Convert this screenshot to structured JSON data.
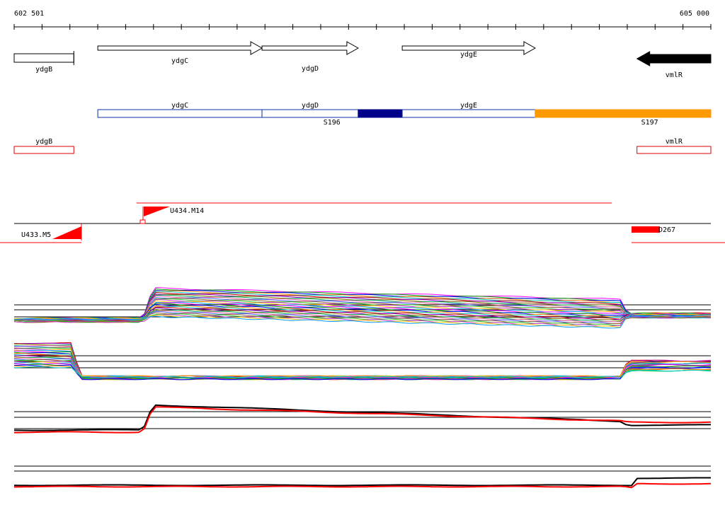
{
  "ruler": {
    "start_label": "602 501",
    "end_label": "605 000",
    "start_bp": 602501,
    "end_bp": 605000
  },
  "genes": [
    {
      "id": "ydgB",
      "label": "ydgB",
      "start": 602501,
      "end": 602715,
      "strand": "none",
      "filled": false
    },
    {
      "id": "ydgC",
      "label": "ydgC",
      "start": 602801,
      "end": 603390,
      "strand": "+",
      "filled": false
    },
    {
      "id": "ydgD",
      "label": "ydgD",
      "start": 603390,
      "end": 603735,
      "strand": "+",
      "filled": false
    },
    {
      "id": "ydgE",
      "label": "ydgE",
      "start": 603893,
      "end": 604370,
      "strand": "+",
      "filled": false
    },
    {
      "id": "vmlR",
      "label": "vmlR",
      "start": 604735,
      "end": 605000,
      "strand": "-",
      "filled": true
    }
  ],
  "operon_track": [
    {
      "label": "ydgC",
      "start": 602801,
      "end": 603390,
      "color": "#1030a0",
      "style": "outline"
    },
    {
      "label": "ydgD",
      "start": 603390,
      "end": 603735,
      "color": "#1030a0",
      "style": "outline"
    },
    {
      "label": "",
      "start": 603735,
      "end": 603893,
      "color": "#00008b",
      "style": "fill"
    },
    {
      "label": "ydgE",
      "start": 603893,
      "end": 604370,
      "color": "#1030a0",
      "style": "outline"
    },
    {
      "label": "",
      "start": 604370,
      "end": 605000,
      "color": "#ff9900",
      "style": "fill"
    }
  ],
  "segment_labels": [
    {
      "text": "S196",
      "pos": 603595
    },
    {
      "text": "S197",
      "pos": 604735
    }
  ],
  "red_boxes": [
    {
      "label": "ydgB",
      "start": 602501,
      "end": 602715
    },
    {
      "label": "vmlR",
      "start": 604735,
      "end": 605000
    }
  ],
  "transcripts": [
    {
      "label": "U434.M14",
      "start_pos": 602955,
      "end_pos": 604645
    },
    {
      "label": "U433.M5"
    },
    {
      "label": "D267"
    }
  ],
  "colors": {
    "accent_red": "#ff0000",
    "operon_blue": "#1030a0",
    "dark_blue": "#00008b",
    "orange": "#ff9900"
  }
}
